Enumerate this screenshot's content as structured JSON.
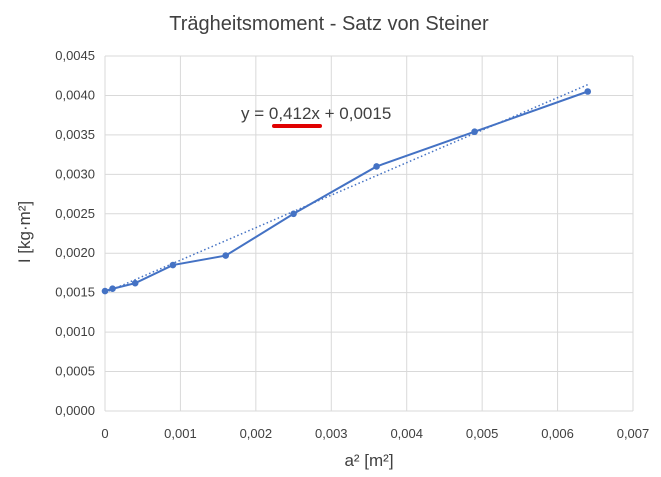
{
  "chart_data": {
    "type": "scatter",
    "title": "Trägheitsmoment - Satz von Steiner",
    "xlabel": "a² [m²]",
    "ylabel": "I [kg·m²]",
    "xlim": [
      0,
      0.007
    ],
    "ylim": [
      0,
      0.0045
    ],
    "x_ticks": [
      "0",
      "0,001",
      "0,002",
      "0,003",
      "0,004",
      "0,005",
      "0,006",
      "0,007"
    ],
    "y_ticks": [
      "0,0000",
      "0,0005",
      "0,0010",
      "0,0015",
      "0,0020",
      "0,0025",
      "0,0030",
      "0,0035",
      "0,0040",
      "0,0045"
    ],
    "grid": true,
    "series": [
      {
        "x": [
          0,
          0.0001,
          0.0004,
          0.0009,
          0.0016,
          0.0025,
          0.0036,
          0.0049,
          0.0064
        ],
        "y": [
          0.00152,
          0.00155,
          0.00162,
          0.00185,
          0.00197,
          0.0025,
          0.0031,
          0.00354,
          0.00405
        ],
        "color": "#4472c4",
        "style": "line-with-markers"
      }
    ],
    "trendline": {
      "slope": 0.412,
      "intercept": 0.0015,
      "style": "dotted",
      "color": "#4472c4",
      "equation_label": "y = 0,412x + 0,0015",
      "highlight_color": "#e00000"
    }
  }
}
